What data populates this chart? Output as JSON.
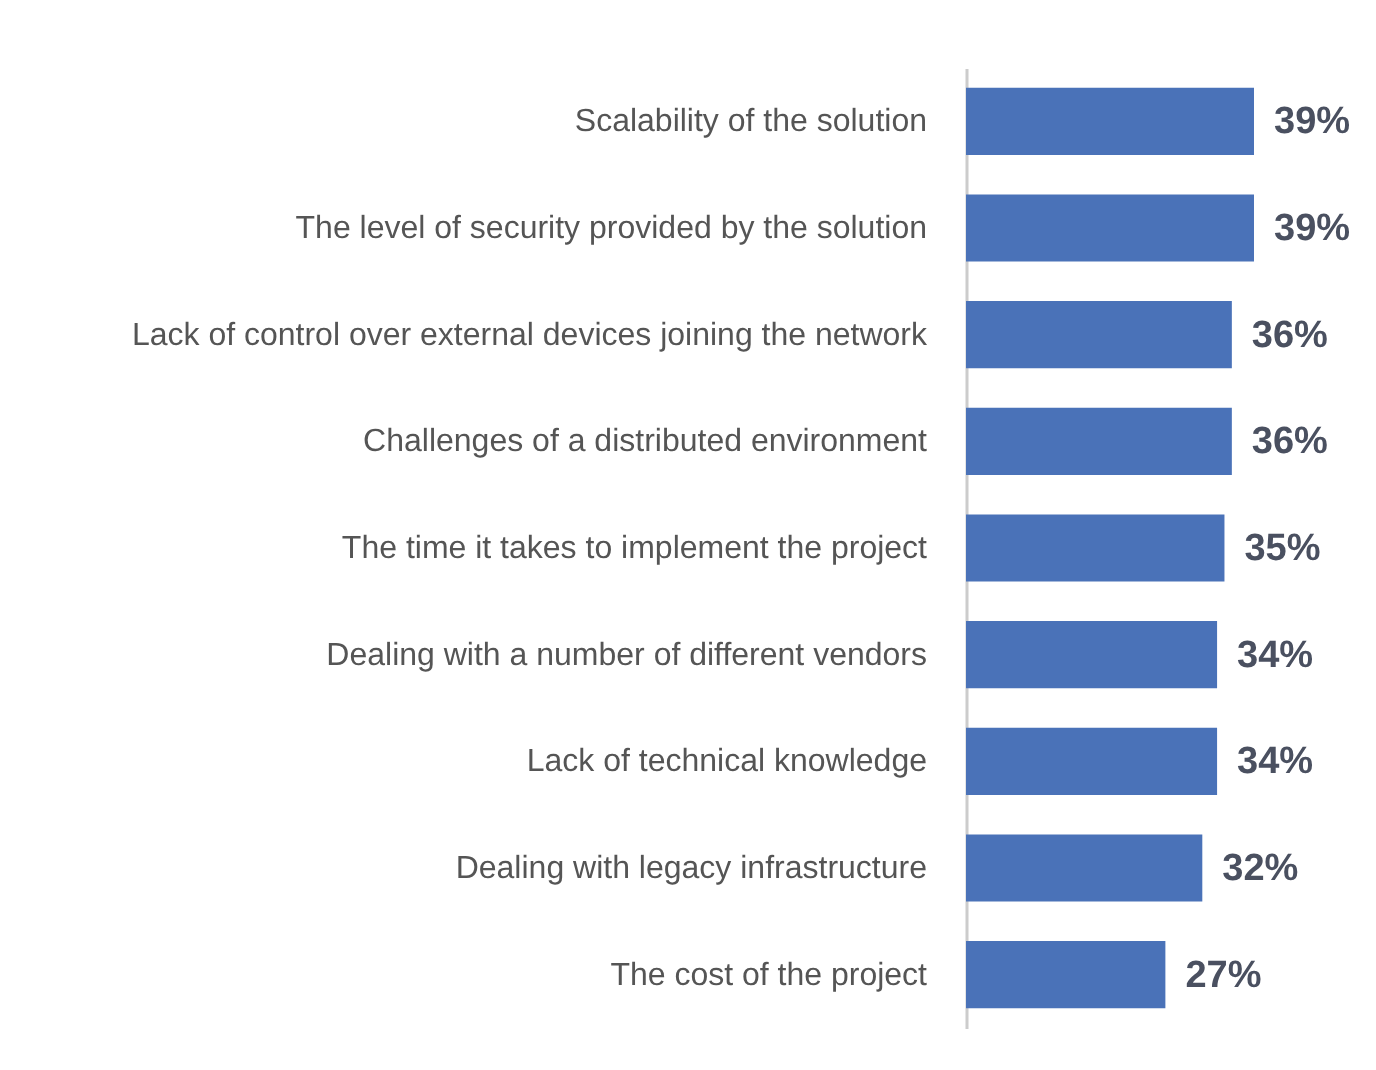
{
  "chart_data": {
    "type": "bar",
    "orientation": "horizontal",
    "categories": [
      "Scalability of the solution",
      "The level of security provided by the solution",
      "Lack of control over external devices joining the network",
      "Challenges of a distributed environment",
      "The time it takes to implement the project",
      "Dealing with a number of different vendors",
      "Lack of technical knowledge",
      "Dealing with legacy infrastructure",
      "The cost of the project"
    ],
    "values": [
      39,
      39,
      36,
      36,
      35,
      34,
      34,
      32,
      27
    ],
    "value_labels": [
      "39%",
      "39%",
      "36%",
      "36%",
      "35%",
      "34%",
      "34%",
      "32%",
      "27%"
    ],
    "color": "#4a72b8"
  }
}
